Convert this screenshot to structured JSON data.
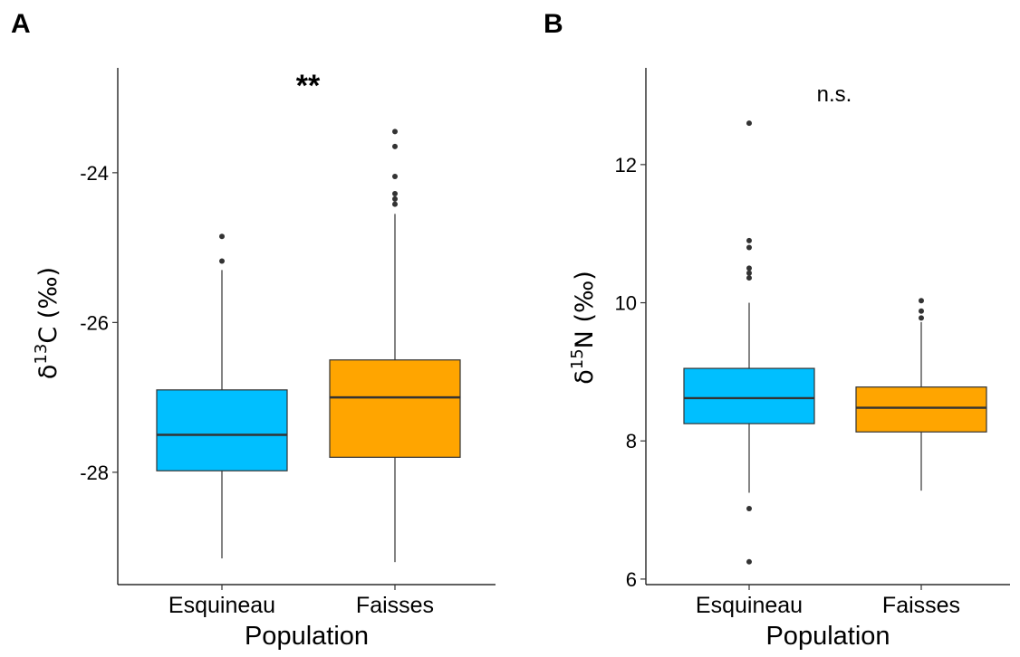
{
  "chart_data": [
    {
      "panel": "A",
      "type": "box",
      "significance": "**",
      "xlabel": "Population",
      "ylabel": {
        "symbol": "δ",
        "isotope": "13",
        "element": "C",
        "unit": " (‰)"
      },
      "ylim": [
        -29.5,
        -22.6
      ],
      "yticks": [
        -28,
        -26,
        -24
      ],
      "categories": [
        "Esquineau",
        "Faisses"
      ],
      "boxes": [
        {
          "category": "Esquineau",
          "color": "#00bfff",
          "whisker_low": -29.15,
          "q1": -27.98,
          "median": -27.5,
          "q3": -26.9,
          "whisker_high": -25.3,
          "outliers": [
            -24.85,
            -25.18
          ]
        },
        {
          "category": "Faisses",
          "color": "#ffa500",
          "whisker_low": -29.2,
          "q1": -27.8,
          "median": -27.0,
          "q3": -26.5,
          "whisker_high": -24.55,
          "outliers": [
            -23.45,
            -23.65,
            -24.05,
            -24.28,
            -24.35,
            -24.42
          ]
        }
      ]
    },
    {
      "panel": "B",
      "type": "box",
      "significance": "n.s.",
      "xlabel": "Population",
      "ylabel": {
        "symbol": "δ",
        "isotope": "15",
        "element": "N",
        "unit": " (‰)"
      },
      "ylim": [
        5.92,
        13.4
      ],
      "yticks": [
        6,
        8,
        10,
        12
      ],
      "categories": [
        "Esquineau",
        "Faisses"
      ],
      "boxes": [
        {
          "category": "Esquineau",
          "color": "#00bfff",
          "whisker_low": 7.25,
          "q1": 8.25,
          "median": 8.62,
          "q3": 9.05,
          "whisker_high": 10.0,
          "outliers": [
            12.6,
            10.9,
            10.8,
            10.5,
            10.43,
            10.36,
            7.02,
            6.25
          ]
        },
        {
          "category": "Faisses",
          "color": "#ffa500",
          "whisker_low": 7.28,
          "q1": 8.13,
          "median": 8.48,
          "q3": 8.78,
          "whisker_high": 9.72,
          "outliers": [
            10.03,
            9.88,
            9.78
          ]
        }
      ]
    }
  ]
}
